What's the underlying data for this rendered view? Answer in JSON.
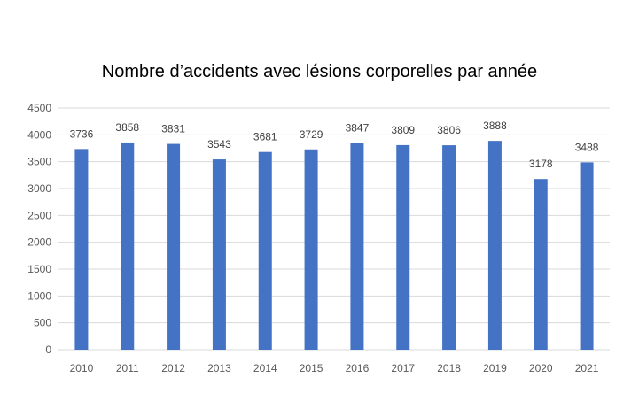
{
  "chart_data": {
    "type": "bar",
    "title": "Nombre d’accidents avec lésions corporelles par année",
    "xlabel": "",
    "ylabel": "",
    "categories": [
      "2010",
      "2011",
      "2012",
      "2013",
      "2014",
      "2015",
      "2016",
      "2017",
      "2018",
      "2019",
      "2020",
      "2021"
    ],
    "values": [
      3736,
      3858,
      3831,
      3543,
      3681,
      3729,
      3847,
      3809,
      3806,
      3888,
      3178,
      3488
    ],
    "ylim": [
      0,
      4500
    ],
    "yticks": [
      0,
      500,
      1000,
      1500,
      2000,
      2500,
      3000,
      3500,
      4000,
      4500
    ],
    "grid": true,
    "legend": "none",
    "bar_color": "#4472c4",
    "grid_color": "#d9d9d9"
  }
}
